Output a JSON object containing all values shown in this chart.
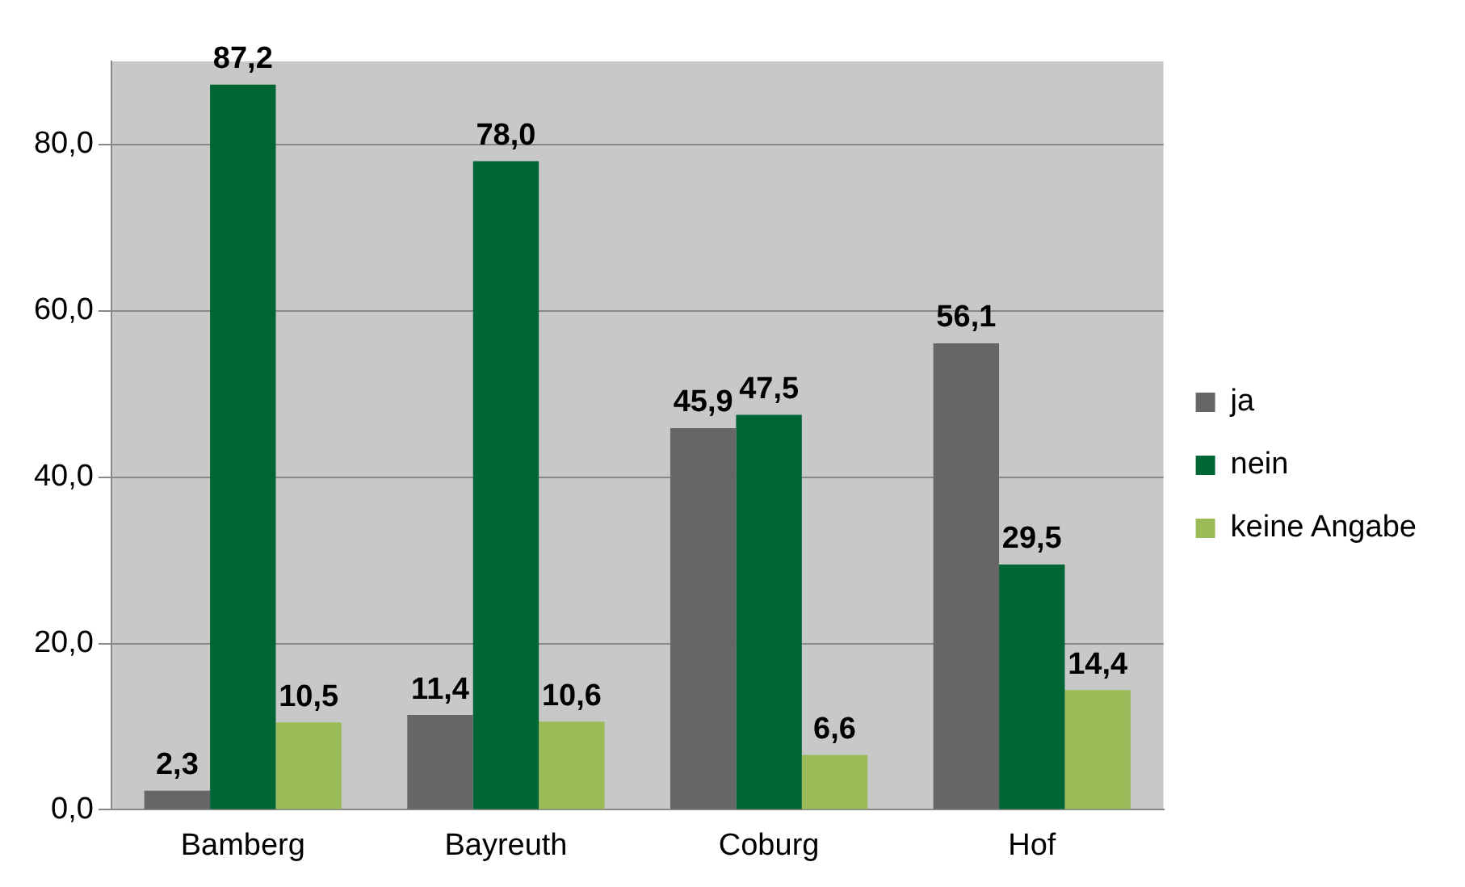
{
  "chart_data": {
    "type": "bar",
    "categories": [
      "Bamberg",
      "Bayreuth",
      "Coburg",
      "Hof"
    ],
    "series": [
      {
        "name": "ja",
        "color": "#666666",
        "values": [
          2.3,
          11.4,
          45.9,
          56.1
        ],
        "value_labels": [
          "2,3",
          "11,4",
          "45,9",
          "56,1"
        ]
      },
      {
        "name": "nein",
        "color": "#006633",
        "values": [
          87.2,
          78.0,
          47.5,
          29.5
        ],
        "value_labels": [
          "87,2",
          "78,0",
          "47,5",
          "29,5"
        ]
      },
      {
        "name": "keine Angabe",
        "color": "#9bbb59",
        "values": [
          10.5,
          10.6,
          6.6,
          14.4
        ],
        "value_labels": [
          "10,5",
          "10,6",
          "6,6",
          "14,4"
        ]
      }
    ],
    "ylim": [
      0,
      90
    ],
    "yticks": [
      {
        "value": 0,
        "label": "0,0"
      },
      {
        "value": 20,
        "label": "20,0"
      },
      {
        "value": 40,
        "label": "40,0"
      },
      {
        "value": 60,
        "label": "60,0"
      },
      {
        "value": 80,
        "label": "80,0"
      }
    ],
    "grid": "y",
    "legend": "right"
  }
}
